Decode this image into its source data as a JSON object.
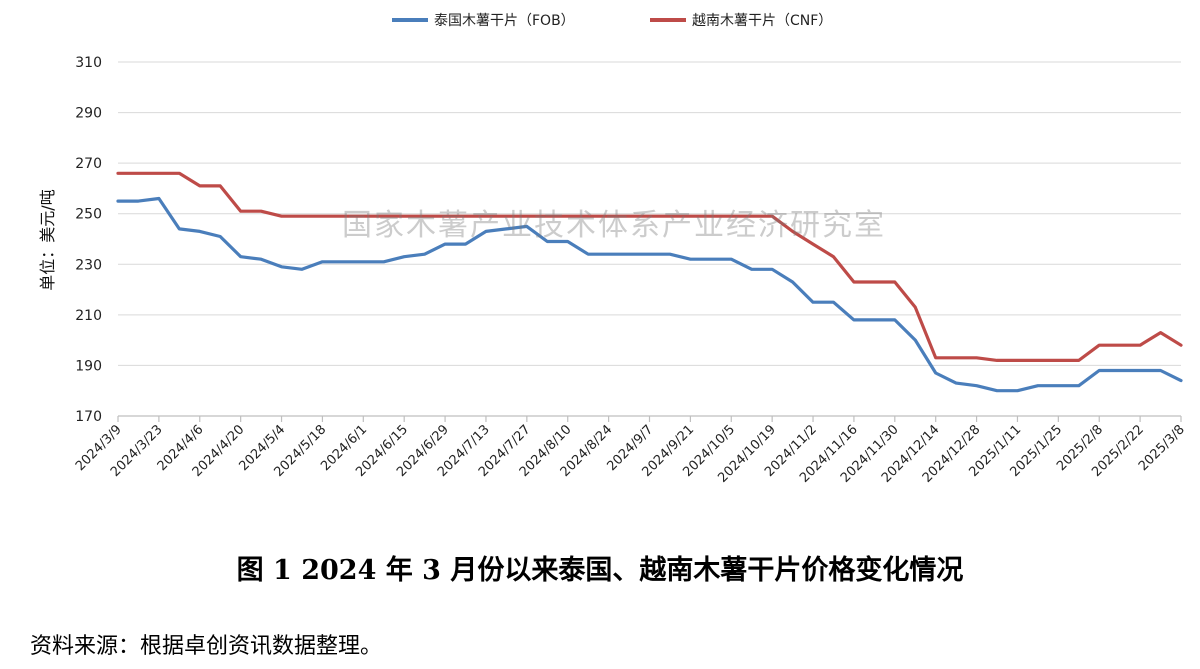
{
  "chart_data": {
    "type": "line",
    "ylabel": "单位：美元/吨",
    "ylim": [
      170,
      310
    ],
    "yticks": [
      170,
      190,
      210,
      230,
      250,
      270,
      290,
      310
    ],
    "grid": true,
    "legend_position": "top-center",
    "xtick_labels": [
      "2024/3/9",
      "2024/3/23",
      "2024/4/6",
      "2024/4/20",
      "2024/5/4",
      "2024/5/18",
      "2024/6/1",
      "2024/6/15",
      "2024/6/29",
      "2024/7/13",
      "2024/7/27",
      "2024/8/10",
      "2024/8/24",
      "2024/9/7",
      "2024/9/21",
      "2024/10/5",
      "2024/10/19",
      "2024/11/2",
      "2024/11/16",
      "2024/11/30",
      "2024/12/14",
      "2024/12/28",
      "2025/1/11",
      "2025/1/25",
      "2025/2/8",
      "2025/2/22",
      "2025/3/8"
    ],
    "x": [
      "2024/3/9",
      "2024/3/16",
      "2024/3/23",
      "2024/3/30",
      "2024/4/6",
      "2024/4/13",
      "2024/4/20",
      "2024/4/27",
      "2024/5/4",
      "2024/5/11",
      "2024/5/18",
      "2024/5/25",
      "2024/6/1",
      "2024/6/8",
      "2024/6/15",
      "2024/6/22",
      "2024/6/29",
      "2024/7/6",
      "2024/7/13",
      "2024/7/20",
      "2024/7/27",
      "2024/8/3",
      "2024/8/10",
      "2024/8/17",
      "2024/8/24",
      "2024/8/31",
      "2024/9/7",
      "2024/9/14",
      "2024/9/21",
      "2024/9/28",
      "2024/10/5",
      "2024/10/12",
      "2024/10/19",
      "2024/10/26",
      "2024/11/2",
      "2024/11/9",
      "2024/11/16",
      "2024/11/23",
      "2024/11/30",
      "2024/12/7",
      "2024/12/14",
      "2024/12/21",
      "2024/12/28",
      "2025/1/4",
      "2025/1/11",
      "2025/1/18",
      "2025/1/25",
      "2025/2/1",
      "2025/2/8",
      "2025/2/15",
      "2025/2/22",
      "2025/3/1",
      "2025/3/8"
    ],
    "series": [
      {
        "name": "泰国木薯干片（FOB）",
        "color": "#4a7ebb",
        "values": [
          255,
          255,
          256,
          244,
          243,
          241,
          233,
          232,
          229,
          228,
          231,
          231,
          231,
          231,
          233,
          234,
          238,
          238,
          243,
          244,
          245,
          239,
          239,
          234,
          234,
          234,
          234,
          234,
          232,
          232,
          232,
          228,
          228,
          223,
          215,
          215,
          208,
          208,
          208,
          200,
          187,
          183,
          182,
          180,
          180,
          182,
          182,
          182,
          188,
          188,
          188,
          188,
          184
        ]
      },
      {
        "name": "越南木薯干片（CNF）",
        "color": "#be4b48",
        "values": [
          266,
          266,
          266,
          266,
          261,
          261,
          251,
          251,
          249,
          249,
          249,
          249,
          249,
          249,
          249,
          249,
          249,
          249,
          249,
          249,
          249,
          249,
          249,
          249,
          249,
          249,
          249,
          249,
          249,
          249,
          249,
          249,
          249,
          243,
          238,
          233,
          223,
          223,
          223,
          213,
          193,
          193,
          193,
          192,
          192,
          192,
          192,
          192,
          198,
          198,
          198,
          203,
          198
        ]
      }
    ]
  },
  "watermark": "国家木薯产业技术体系产业经济研究室",
  "caption": "图 1   2024 年 3 月份以来泰国、越南木薯干片价格变化情况",
  "source": "资料来源：根据卓创资讯数据整理。"
}
